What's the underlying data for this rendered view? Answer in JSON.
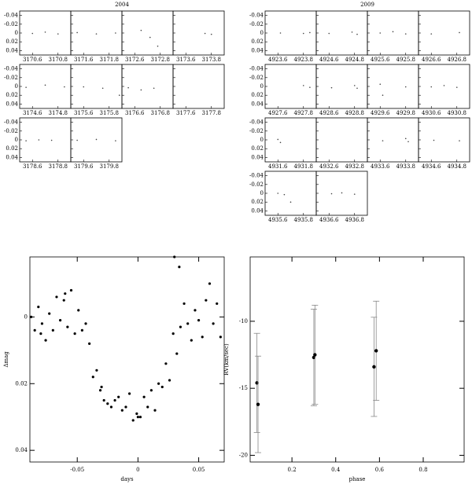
{
  "chart_data": [
    {
      "type": "panels",
      "title": "2004",
      "ylim": [
        0.05,
        -0.05
      ],
      "yticks": [
        -0.04,
        -0.02,
        0,
        0.02,
        0.04
      ],
      "panels": [
        {
          "xlim": [
            3170.5,
            3170.9
          ],
          "xticks": [
            3170.6,
            3170.8
          ],
          "x": [
            3170.6,
            3170.7,
            3170.8
          ],
          "values": [
            0.001,
            -0.002,
            0.002
          ]
        },
        {
          "xlim": [
            3171.5,
            3171.9
          ],
          "xticks": [
            3171.6,
            3171.8
          ],
          "x": [
            3171.55,
            3171.7,
            3171.85
          ],
          "values": [
            -0.001,
            0.002,
            0
          ]
        },
        {
          "xlim": [
            3172.5,
            3172.9
          ],
          "xticks": [
            3172.6,
            3172.8
          ],
          "x": [
            3172.65,
            3172.72,
            3172.78
          ],
          "values": [
            -0.006,
            0.01,
            0.03
          ]
        },
        {
          "xlim": [
            3173.5,
            3173.9
          ],
          "xticks": [
            3173.6,
            3173.8
          ],
          "x": [
            3173.75,
            3173.8
          ],
          "values": [
            0.001,
            0.003
          ]
        },
        {
          "xlim": [
            3174.5,
            3174.9
          ],
          "xticks": [
            3174.6,
            3174.8
          ],
          "x": [
            3174.55,
            3174.7,
            3174.85
          ],
          "values": [
            0.002,
            -0.003,
            0.001
          ]
        },
        {
          "xlim": [
            3175.5,
            3175.9
          ],
          "xticks": [
            3175.6,
            3175.8
          ],
          "x": [
            3175.6,
            3175.75,
            3175.88
          ],
          "values": [
            0.001,
            0.004,
            0.02
          ]
        },
        {
          "xlim": [
            3176.5,
            3176.9
          ],
          "xticks": [
            3176.6,
            3176.8
          ],
          "x": [
            3176.55,
            3176.65,
            3176.75
          ],
          "values": [
            0.003,
            0.008,
            0.004
          ]
        },
        {
          "xlim": [
            3177.5,
            3177.9
          ],
          "xticks": [
            3177.6,
            3177.8
          ],
          "x": [],
          "values": []
        },
        {
          "xlim": [
            3178.5,
            3178.9
          ],
          "xticks": [
            3178.6,
            3178.8
          ],
          "x": [
            3178.55,
            3178.65,
            3178.75
          ],
          "values": [
            0.002,
            0,
            0.001
          ]
        },
        {
          "xlim": [
            3179.5,
            3179.9
          ],
          "xticks": [
            3179.6,
            3179.8
          ],
          "x": [
            3179.55,
            3179.7,
            3179.85
          ],
          "values": [
            0.001,
            -0.001,
            0.002
          ]
        }
      ]
    },
    {
      "type": "panels",
      "title": "2009",
      "ylim": [
        0.05,
        -0.05
      ],
      "yticks": [
        -0.04,
        -0.02,
        0,
        0.02,
        0.04
      ],
      "panels": [
        {
          "xlim": [
            4923.5,
            4923.9
          ],
          "xticks": [
            4923.6,
            4923.8
          ],
          "x": [
            4923.62,
            4923.8,
            4923.85
          ],
          "values": [
            0,
            0.001,
            -0.001
          ]
        },
        {
          "xlim": [
            4924.5,
            4924.9
          ],
          "xticks": [
            4924.6,
            4924.8
          ],
          "x": [
            4924.6,
            4924.78,
            4924.82
          ],
          "values": [
            0.001,
            -0.002,
            0.003
          ]
        },
        {
          "xlim": [
            4925.5,
            4925.9
          ],
          "xticks": [
            4925.6,
            4925.8
          ],
          "x": [
            4925.6,
            4925.7,
            4925.8
          ],
          "values": [
            0,
            -0.003,
            0.002
          ]
        },
        {
          "xlim": [
            4926.5,
            4926.9
          ],
          "xticks": [
            4926.6,
            4926.8
          ],
          "x": [
            4926.6,
            4926.82
          ],
          "values": [
            0.002,
            -0.001
          ]
        },
        {
          "xlim": [
            4927.5,
            4927.9
          ],
          "xticks": [
            4927.6,
            4927.8
          ],
          "x": [
            4927.8,
            4927.85
          ],
          "values": [
            -0.002,
            0.002
          ]
        },
        {
          "xlim": [
            4928.5,
            4928.9
          ],
          "xticks": [
            4928.6,
            4928.8
          ],
          "x": [
            4928.62,
            4928.8,
            4928.82
          ],
          "values": [
            0.003,
            -0.002,
            0.004
          ]
        },
        {
          "xlim": [
            4929.5,
            4929.9
          ],
          "xticks": [
            4929.6,
            4929.8
          ],
          "x": [
            4929.6,
            4929.62,
            4929.8
          ],
          "values": [
            -0.005,
            0.02,
            0.001
          ]
        },
        {
          "xlim": [
            4930.5,
            4930.9
          ],
          "xticks": [
            4930.6,
            4930.8
          ],
          "x": [
            4930.6,
            4930.7,
            4930.8
          ],
          "values": [
            0.001,
            -0.002,
            0.002
          ]
        },
        {
          "xlim": [
            4931.5,
            4931.9
          ],
          "xticks": [
            4931.6,
            4931.8
          ],
          "x": [
            4931.6,
            4931.62
          ],
          "values": [
            -0.001,
            0.006
          ]
        },
        {
          "xlim": [
            4932.5,
            4932.9
          ],
          "xticks": [
            4932.6,
            4932.8
          ],
          "x": [],
          "values": []
        },
        {
          "xlim": [
            4933.5,
            4933.9
          ],
          "xticks": [
            4933.6,
            4933.8
          ],
          "x": [
            4933.62,
            4933.8,
            4933.82
          ],
          "values": [
            0.002,
            -0.003,
            0.004
          ]
        },
        {
          "xlim": [
            4934.5,
            4934.9
          ],
          "xticks": [
            4934.6,
            4934.8
          ],
          "x": [
            4934.62,
            4934.82
          ],
          "values": [
            0.001,
            0.002
          ]
        },
        {
          "xlim": [
            4935.5,
            4935.9
          ],
          "xticks": [
            4935.6,
            4935.8
          ],
          "x": [
            4935.6,
            4935.65,
            4935.7
          ],
          "values": [
            0,
            0.003,
            0.02
          ]
        },
        {
          "xlim": [
            4936.5,
            4936.9
          ],
          "xticks": [
            4936.6,
            4936.8
          ],
          "x": [
            4936.62,
            4936.7,
            4936.8
          ],
          "values": [
            0.001,
            -0.001,
            0.002
          ]
        }
      ]
    },
    {
      "type": "scatter",
      "xlabel": "days",
      "ylabel": "Δmag",
      "xlim": [
        -0.089,
        0.071
      ],
      "ylim": [
        0.0435,
        -0.018
      ],
      "xticks": [
        -0.05,
        0,
        0.05
      ],
      "yticks": [
        0,
        0.02,
        0.04
      ],
      "x": [
        -0.088,
        -0.085,
        -0.082,
        -0.079,
        -0.076,
        -0.073,
        -0.07,
        -0.067,
        -0.064,
        -0.061,
        -0.058,
        -0.055,
        -0.052,
        -0.049,
        -0.046,
        -0.043,
        -0.04,
        -0.037,
        -0.034,
        -0.031,
        -0.028,
        -0.025,
        -0.022,
        -0.019,
        -0.016,
        -0.013,
        -0.01,
        -0.007,
        -0.004,
        -0.001,
        0.002,
        0.005,
        0.008,
        0.011,
        0.014,
        0.017,
        0.02,
        0.023,
        0.026,
        0.029,
        0.032,
        0.035,
        0.038,
        0.041,
        0.044,
        0.047,
        0.05,
        0.053,
        0.056,
        0.059,
        0.062,
        0.065,
        0.068,
        -0.08,
        -0.06,
        -0.03,
        0.0,
        0.03,
        0.034
      ],
      "values": [
        0,
        0.004,
        -0.003,
        0.002,
        0.007,
        -0.001,
        0.004,
        -0.006,
        0.001,
        -0.005,
        0.003,
        -0.008,
        0.005,
        -0.002,
        0.004,
        0.002,
        0.008,
        0.018,
        0.016,
        0.022,
        0.025,
        0.026,
        0.027,
        0.025,
        0.024,
        0.028,
        0.027,
        0.023,
        0.031,
        0.029,
        0.03,
        0.024,
        0.027,
        0.022,
        0.028,
        0.02,
        0.021,
        0.014,
        0.019,
        0.005,
        0.011,
        0.003,
        -0.004,
        0.002,
        0.007,
        -0.002,
        0.001,
        0.006,
        -0.005,
        -0.01,
        0.002,
        -0.004,
        0.006,
        0.005,
        -0.007,
        0.021,
        0.03,
        -0.018,
        -0.015
      ]
    },
    {
      "type": "errorbar",
      "xlabel": "phase",
      "ylabel": "RV(km/sec)",
      "xlim": [
        0.009,
        0.987
      ],
      "ylim": [
        -20.5,
        -5.2
      ],
      "xticks": [
        0.2,
        0.4,
        0.6,
        0.8
      ],
      "yticks": [
        -20,
        -15,
        -10
      ],
      "x": [
        0.04,
        0.045,
        0.3,
        0.305,
        0.575,
        0.585
      ],
      "values": [
        -14.6,
        -16.2,
        -12.7,
        -12.5,
        -13.4,
        -12.2
      ],
      "errors": [
        3.7,
        3.6,
        3.6,
        3.7,
        3.7,
        3.7
      ]
    }
  ]
}
